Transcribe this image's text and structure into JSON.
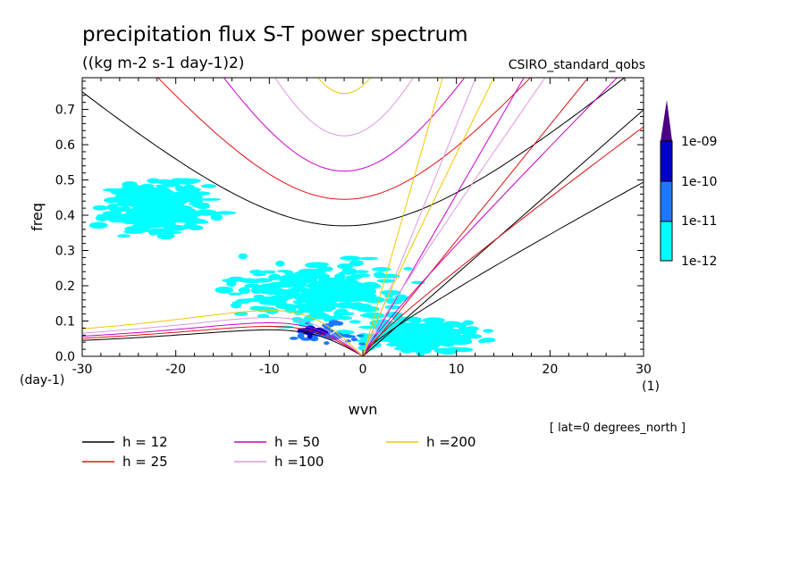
{
  "title": "precipitation flux S-T power spectrum",
  "units": "((kg m-2 s-1 day-1)2)",
  "model": "CSIRO_standard_qobs",
  "lat_note": "[ lat=0 degrees_north ]",
  "colors": {
    "h12": "#000000",
    "h25": "#e01010",
    "h50": "#cc00cc",
    "h100": "#dd99dd",
    "h200": "#f0c800",
    "level1": "#00ffff",
    "level2": "#1e78ff",
    "level3": "#0000c8",
    "level4": "#4b0082"
  },
  "chart_data": {
    "type": "heatmap",
    "xlabel": "wvn",
    "ylabel": "freq",
    "x_unit_label": "(1)",
    "y_unit_label": "(day-1)",
    "xlim": [
      -30,
      30
    ],
    "ylim": [
      0,
      0.79
    ],
    "xticks": [
      -30,
      -20,
      -10,
      0,
      10,
      20,
      30
    ],
    "xtick_labels": [
      "-30",
      "-20",
      "-10",
      "0",
      "10",
      "20",
      "30"
    ],
    "yticks": [
      0,
      0.1,
      0.2,
      0.3,
      0.4,
      0.5,
      0.6,
      0.7
    ],
    "ytick_labels": [
      "0.0",
      "0.1",
      "0.2",
      "0.3",
      "0.4",
      "0.5",
      "0.6",
      "0.7"
    ],
    "colorbar": {
      "labels": [
        "1e-12",
        "1e-11",
        "1e-10",
        "1e-09"
      ],
      "levels": [
        1e-12,
        1e-11,
        1e-10,
        1e-09
      ]
    },
    "legend": [
      {
        "label": "h = 12",
        "h": 12,
        "color_key": "h12"
      },
      {
        "label": "h = 25",
        "h": 25,
        "color_key": "h25"
      },
      {
        "label": "h = 50",
        "h": 50,
        "color_key": "h50"
      },
      {
        "label": "h =100",
        "h": 100,
        "color_key": "h100"
      },
      {
        "label": "h =200",
        "h": 200,
        "color_key": "h200"
      }
    ],
    "dispersion_curves": [
      {
        "h": 12,
        "color_key": "h12",
        "igw_min_freq": 0.37,
        "kelvin_slope": 0.0233,
        "rossby_max": 0.075
      },
      {
        "h": 25,
        "color_key": "h25",
        "igw_min_freq": 0.445,
        "kelvin_slope": 0.0328,
        "rossby_max": 0.085
      },
      {
        "h": 50,
        "color_key": "h50",
        "igw_min_freq": 0.525,
        "kelvin_slope": 0.0459,
        "rossby_max": 0.095
      },
      {
        "h": 100,
        "color_key": "h100",
        "igw_min_freq": 0.625,
        "kelvin_slope": 0.0655,
        "rossby_max": 0.11
      },
      {
        "h": 200,
        "color_key": "h200",
        "igw_min_freq": 0.745,
        "kelvin_slope": 0.0928,
        "rossby_max": 0.13
      }
    ],
    "power_field": {
      "description_level": "1e-12 to 1e-09",
      "regions": [
        {
          "level": 1,
          "x_center": -5,
          "y_center": 0.18,
          "x_spread": 12,
          "y_spread": 0.12
        },
        {
          "level": 1,
          "x_center": -22,
          "y_center": 0.42,
          "x_spread": 8,
          "y_spread": 0.1
        },
        {
          "level": 1,
          "x_center": 6,
          "y_center": 0.06,
          "x_spread": 8,
          "y_spread": 0.06
        },
        {
          "level": 2,
          "x_center": -4,
          "y_center": 0.06,
          "x_spread": 5,
          "y_spread": 0.04
        },
        {
          "level": 3,
          "x_center": -5,
          "y_center": 0.07,
          "x_spread": 2,
          "y_spread": 0.02
        }
      ]
    }
  }
}
